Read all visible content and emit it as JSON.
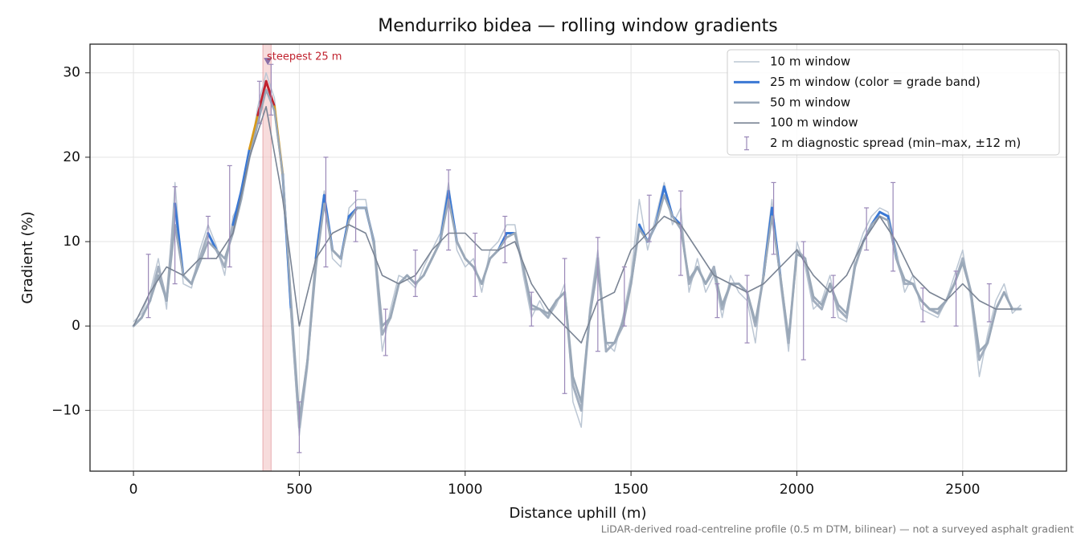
{
  "chart_data": {
    "type": "line",
    "title": "Mendurriko bidea — rolling window gradients",
    "xlabel": "Distance uphill (m)",
    "ylabel": "Gradient (%)",
    "footnote": "LiDAR-derived road-centreline profile (0.5 m DTM, bilinear) — not a surveyed asphalt gradient",
    "xlim": [
      -131,
      2813
    ],
    "ylim": [
      -17.2,
      33.4
    ],
    "xticks": [
      0,
      500,
      1000,
      1500,
      2000,
      2500
    ],
    "yticks": [
      {
        "value": -10,
        "label": "−10"
      },
      0,
      10,
      20,
      30
    ],
    "grid": true,
    "legend": "upper right",
    "x": [
      0,
      25,
      50,
      75,
      100,
      125,
      150,
      175,
      200,
      225,
      250,
      275,
      300,
      325,
      350,
      375,
      400,
      425,
      450,
      475,
      500,
      525,
      550,
      575,
      600,
      625,
      650,
      675,
      700,
      725,
      750,
      775,
      800,
      825,
      850,
      875,
      900,
      925,
      950,
      975,
      1000,
      1025,
      1050,
      1075,
      1100,
      1125,
      1150,
      1175,
      1200,
      1225,
      1250,
      1275,
      1300,
      1325,
      1350,
      1375,
      1400,
      1425,
      1450,
      1475,
      1500,
      1525,
      1550,
      1575,
      1600,
      1625,
      1650,
      1675,
      1700,
      1725,
      1750,
      1775,
      1800,
      1825,
      1850,
      1875,
      1900,
      1925,
      1950,
      1975,
      2000,
      2025,
      2050,
      2075,
      2100,
      2125,
      2150,
      2175,
      2200,
      2225,
      2250,
      2275,
      2300,
      2325,
      2350,
      2375,
      2400,
      2425,
      2450,
      2475,
      2500,
      2525,
      2550,
      2575,
      2600,
      2625,
      2650,
      2675
    ],
    "series": [
      {
        "name": "10 m window",
        "color": "#bcc7d4",
        "values": [
          0.5,
          1.5,
          4,
          8,
          2,
          17,
          5,
          4.5,
          9,
          12,
          9.5,
          6,
          13,
          15,
          20,
          26,
          30,
          27,
          17,
          1,
          -13,
          -5,
          9,
          16,
          8,
          7,
          14,
          15,
          15,
          9,
          -3,
          2,
          6,
          5.5,
          4.5,
          7,
          9,
          11,
          17,
          9,
          7,
          8,
          4,
          9,
          10,
          12,
          12,
          6,
          1,
          3,
          1,
          2.5,
          5,
          -9,
          -12,
          2,
          9,
          -2,
          -3,
          1,
          6,
          15,
          9,
          13,
          17,
          12,
          14,
          4,
          8,
          4,
          6,
          1,
          6,
          4,
          3,
          -2,
          7,
          15,
          5,
          -3,
          10,
          7,
          2,
          3,
          6,
          1,
          0.5,
          8,
          11,
          13,
          14,
          13.5,
          9,
          4,
          6,
          2,
          1.5,
          1,
          3,
          6,
          9,
          3,
          -6,
          -1,
          3,
          5,
          1.5,
          2.5
        ]
      },
      {
        "name": "25 m window (color = grade band)",
        "color": "#3a78d4",
        "low_color": "#a3afbf",
        "bands": [
          {
            "min": 10,
            "color": "#3a78d4"
          },
          {
            "min": 20,
            "color": "#d89a1a"
          },
          {
            "min": 25,
            "color": "#c0222e"
          }
        ],
        "values": [
          0,
          1,
          3,
          7,
          3,
          14.5,
          6,
          5,
          8,
          11,
          9,
          7,
          12,
          16,
          21,
          25,
          29,
          26,
          18,
          2,
          -12,
          -4,
          8,
          15.5,
          9,
          8,
          13,
          14,
          14,
          10,
          -1,
          1,
          5,
          6,
          5,
          6,
          8,
          10,
          16,
          10,
          8,
          7,
          5,
          8,
          9,
          11,
          11,
          7,
          2,
          2,
          1,
          3,
          4,
          -7,
          -10,
          1,
          8,
          -3,
          -2,
          0,
          5,
          12,
          10,
          12,
          16.5,
          13,
          12,
          5,
          7,
          5,
          7,
          2,
          5,
          5,
          4,
          0,
          6,
          14,
          6,
          -2,
          9,
          8,
          3,
          2,
          5,
          2,
          1,
          7,
          10,
          12,
          13.5,
          13,
          8,
          5,
          5,
          3,
          2,
          1.5,
          3,
          5,
          8,
          4,
          -4,
          -2,
          2,
          4,
          2,
          2
        ]
      },
      {
        "name": "50 m window",
        "color": "#9aa8b8",
        "values": [
          0,
          1,
          3,
          6,
          3,
          12,
          6,
          5,
          7.5,
          10,
          9,
          8,
          11,
          15,
          20,
          24,
          28,
          25.5,
          18,
          3,
          -11,
          -4,
          7,
          14.5,
          9,
          8,
          12.5,
          14,
          14,
          10,
          0,
          1,
          5,
          6,
          5,
          6,
          8,
          10,
          15,
          10,
          8,
          7,
          5,
          8,
          9,
          10.5,
          11,
          7,
          2.5,
          2,
          1.5,
          3,
          4,
          -6,
          -9,
          1,
          7,
          -2,
          -2,
          0.5,
          5,
          11.5,
          10,
          12,
          15.5,
          13,
          11.5,
          5.5,
          7,
          5,
          6.5,
          2.5,
          5,
          5,
          4,
          0.5,
          6,
          13,
          6,
          -1.5,
          8.5,
          8,
          3.5,
          2.5,
          5,
          2.5,
          1.5,
          7,
          10,
          12,
          13,
          12.5,
          8,
          5.5,
          5,
          3,
          2,
          2,
          3,
          5,
          7.5,
          4,
          -3,
          -2,
          2,
          4,
          2,
          2
        ]
      },
      {
        "name": "100 m window",
        "color": "#7a8494",
        "x": [
          0,
          50,
          100,
          150,
          200,
          250,
          300,
          350,
          400,
          450,
          500,
          550,
          600,
          650,
          700,
          750,
          800,
          850,
          900,
          950,
          1000,
          1050,
          1100,
          1150,
          1200,
          1250,
          1300,
          1350,
          1400,
          1450,
          1500,
          1550,
          1600,
          1650,
          1700,
          1750,
          1800,
          1850,
          1900,
          1950,
          2000,
          2050,
          2100,
          2150,
          2200,
          2250,
          2300,
          2350,
          2400,
          2450,
          2500,
          2550,
          2600,
          2650
        ],
        "values": [
          0,
          4,
          7,
          6,
          8,
          8,
          11,
          20,
          26,
          15,
          0,
          8,
          11,
          12,
          11,
          6,
          5,
          6,
          9,
          11,
          11,
          9,
          9,
          10,
          5,
          2,
          0,
          -2,
          3,
          4,
          9,
          11,
          13,
          12,
          9,
          6,
          5,
          4,
          5,
          7,
          9,
          6,
          4,
          6,
          10,
          13,
          10,
          6,
          4,
          3,
          5,
          3,
          2,
          2
        ]
      }
    ],
    "errorbars": {
      "name": "2 m diagnostic spread (min–max, ±12 m)",
      "color": "#9a88b8",
      "x": [
        45,
        125,
        225,
        290,
        380,
        415,
        500,
        580,
        670,
        760,
        850,
        950,
        1030,
        1120,
        1200,
        1300,
        1400,
        1480,
        1555,
        1650,
        1760,
        1850,
        1930,
        2020,
        2110,
        2210,
        2290,
        2380,
        2480,
        2580
      ],
      "low": [
        1,
        5,
        8,
        7,
        24,
        25,
        -15,
        7,
        10,
        -3.5,
        3.5,
        9,
        3.5,
        7.5,
        0,
        -8,
        -3,
        0,
        10,
        6,
        1,
        -2,
        8.5,
        -4,
        1,
        9,
        6.5,
        0.5,
        0,
        0.5
      ],
      "high": [
        8.5,
        16.5,
        13,
        19,
        29,
        31,
        -9,
        20,
        16,
        2,
        9,
        18.5,
        11,
        13,
        4,
        8,
        10.5,
        7,
        15.5,
        16,
        5,
        6,
        17,
        10,
        6,
        14,
        17,
        4.5,
        6.5,
        5
      ]
    },
    "steepest": {
      "label": "steepest 25 m",
      "color": "#c0222e",
      "span_color": "#f2c4c4",
      "marker_color": "#8a70a8",
      "x0": 390,
      "x1": 415,
      "marker_x": 405,
      "marker_y": 31.3
    }
  }
}
